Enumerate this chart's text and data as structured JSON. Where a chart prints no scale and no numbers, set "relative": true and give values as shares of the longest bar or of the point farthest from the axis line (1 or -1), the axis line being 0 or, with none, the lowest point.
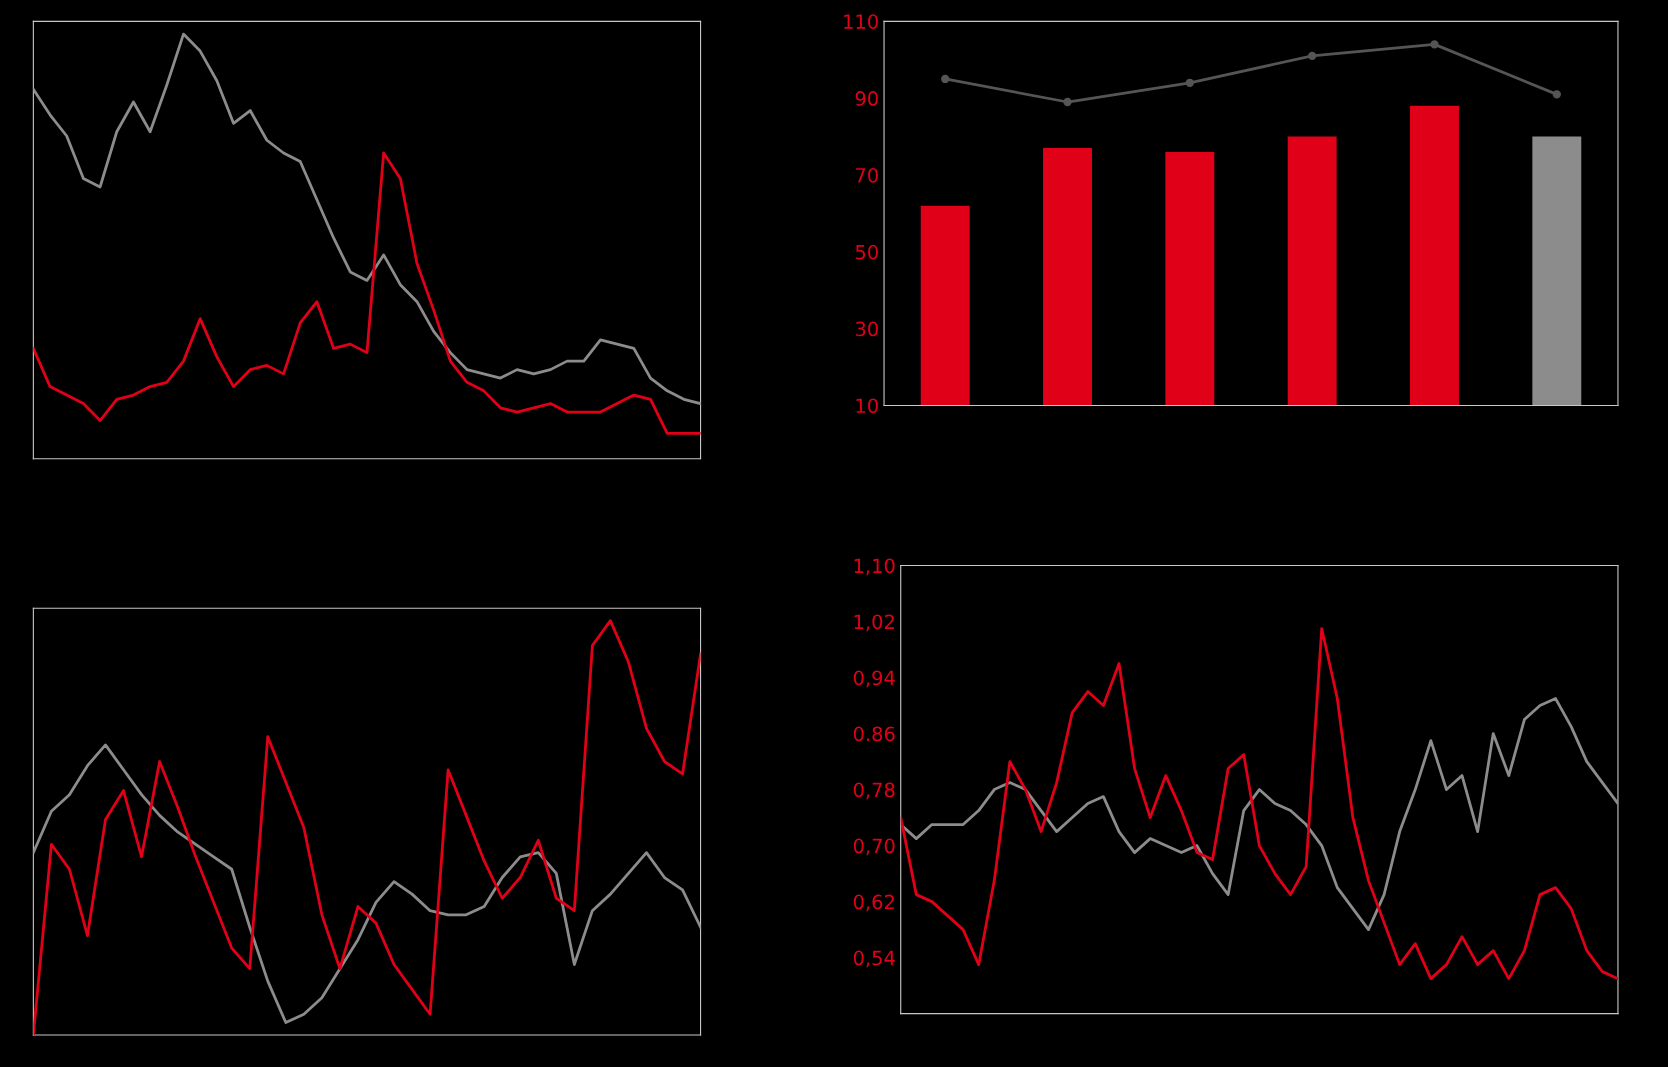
{
  "chart_data": [
    {
      "type": "line",
      "relative": true,
      "tick_labels": false,
      "categories": [
        null,
        null,
        null,
        null,
        null,
        null,
        null,
        null,
        null,
        null,
        null,
        null,
        null,
        null,
        null,
        null,
        null,
        null,
        null,
        null,
        null,
        null,
        null,
        null,
        null,
        null,
        null,
        null,
        null,
        null,
        null,
        null,
        null,
        null,
        null,
        null,
        null,
        null,
        null,
        null,
        null
      ],
      "series": [
        {
          "color": "#8c8c8c",
          "values": [
            0.87,
            0.81,
            0.76,
            0.66,
            0.64,
            0.77,
            0.84,
            0.77,
            0.88,
            1.0,
            0.96,
            0.89,
            0.79,
            0.82,
            0.75,
            0.72,
            0.7,
            0.61,
            0.52,
            0.44,
            0.42,
            0.48,
            0.41,
            0.37,
            0.3,
            0.25,
            0.21,
            0.2,
            0.19,
            0.21,
            0.2,
            0.21,
            0.23,
            0.23,
            0.28,
            0.27,
            0.26,
            0.19,
            0.16,
            0.14,
            0.13
          ]
        },
        {
          "color": "#e00018",
          "values": [
            0.26,
            0.17,
            0.15,
            0.13,
            0.09,
            0.14,
            0.15,
            0.17,
            0.18,
            0.23,
            0.33,
            0.24,
            0.17,
            0.21,
            0.22,
            0.2,
            0.32,
            0.37,
            0.26,
            0.27,
            0.25,
            0.72,
            0.66,
            0.46,
            0.35,
            0.23,
            0.18,
            0.16,
            0.12,
            0.11,
            0.12,
            0.13,
            0.11,
            0.11,
            0.11,
            0.13,
            0.15,
            0.14,
            0.06,
            0.06,
            0.06
          ]
        }
      ]
    },
    {
      "type": "bar",
      "tick_labels": "y",
      "categories": [
        null,
        null,
        null,
        null,
        null,
        null
      ],
      "ylim": [
        10,
        110
      ],
      "yticks": [
        10,
        30,
        50,
        70,
        90,
        110
      ],
      "colors": [
        "#e00018",
        "#e00018",
        "#e00018",
        "#e00018",
        "#e00018",
        "#8c8c8c"
      ],
      "values": [
        62,
        77,
        76,
        80,
        88,
        80
      ],
      "series": [
        {
          "type": "line",
          "color": "#555555",
          "marker": "circle",
          "values": [
            95,
            89,
            94,
            101,
            104,
            91
          ]
        }
      ]
    },
    {
      "type": "line",
      "relative": true,
      "tick_labels": false,
      "categories": [
        null,
        null,
        null,
        null,
        null,
        null,
        null,
        null,
        null,
        null,
        null,
        null,
        null,
        null,
        null,
        null,
        null,
        null,
        null,
        null,
        null,
        null,
        null,
        null,
        null,
        null,
        null,
        null,
        null,
        null,
        null,
        null,
        null,
        null,
        null,
        null,
        null,
        null
      ],
      "series": [
        {
          "color": "#8c8c8c",
          "values": [
            0.44,
            0.54,
            0.58,
            0.65,
            0.7,
            0.64,
            0.58,
            0.53,
            0.49,
            0.46,
            0.43,
            0.4,
            0.26,
            0.13,
            0.03,
            0.05,
            0.09,
            0.16,
            0.23,
            0.32,
            0.37,
            0.34,
            0.3,
            0.29,
            0.29,
            0.31,
            0.38,
            0.43,
            0.44,
            0.39,
            0.17,
            0.3,
            0.34,
            0.39,
            0.44,
            0.38,
            0.35,
            0.26
          ]
        },
        {
          "color": "#e00018",
          "values": [
            0.0,
            0.46,
            0.4,
            0.24,
            0.52,
            0.59,
            0.43,
            0.66,
            0.55,
            0.43,
            0.32,
            0.21,
            0.16,
            0.72,
            0.61,
            0.5,
            0.29,
            0.16,
            0.31,
            0.27,
            0.17,
            0.11,
            0.05,
            0.64,
            0.53,
            0.42,
            0.33,
            0.38,
            0.47,
            0.33,
            0.3,
            0.94,
            1.0,
            0.9,
            0.74,
            0.66,
            0.63,
            0.92
          ]
        }
      ]
    },
    {
      "type": "line",
      "tick_labels": "y",
      "ylim": [
        0.46,
        1.1
      ],
      "yticks": [
        {
          "value": 0.54,
          "label": "0,54"
        },
        {
          "value": 0.62,
          "label": "0,62"
        },
        {
          "value": 0.7,
          "label": "0,70"
        },
        {
          "value": 0.78,
          "label": "0,78"
        },
        {
          "value": 0.86,
          "label": "0.86"
        },
        {
          "value": 0.94,
          "label": "0,94"
        },
        {
          "value": 1.02,
          "label": "1,02"
        },
        {
          "value": 1.1,
          "label": "1,10"
        }
      ],
      "categories": [
        null,
        null,
        null,
        null,
        null,
        null,
        null,
        null,
        null,
        null,
        null,
        null,
        null,
        null,
        null,
        null,
        null,
        null,
        null,
        null,
        null,
        null,
        null,
        null,
        null,
        null,
        null,
        null,
        null,
        null,
        null,
        null,
        null,
        null,
        null,
        null,
        null,
        null,
        null,
        null,
        null,
        null,
        null,
        null,
        null,
        null,
        null
      ],
      "series": [
        {
          "color": "#8c8c8c",
          "values": [
            0.73,
            0.71,
            0.73,
            0.73,
            0.73,
            0.75,
            0.78,
            0.79,
            0.78,
            0.75,
            0.72,
            0.74,
            0.76,
            0.77,
            0.72,
            0.69,
            0.71,
            0.7,
            0.69,
            0.7,
            0.66,
            0.63,
            0.75,
            0.78,
            0.76,
            0.75,
            0.73,
            0.7,
            0.64,
            0.61,
            0.58,
            0.63,
            0.72,
            0.78,
            0.85,
            0.78,
            0.8,
            0.72,
            0.86,
            0.8,
            0.88,
            0.9,
            0.91,
            0.87,
            0.82,
            0.79,
            0.76
          ]
        },
        {
          "color": "#e00018",
          "values": [
            0.74,
            0.63,
            0.62,
            0.6,
            0.58,
            0.53,
            0.65,
            0.82,
            0.78,
            0.72,
            0.79,
            0.89,
            0.92,
            0.9,
            0.96,
            0.81,
            0.74,
            0.8,
            0.75,
            0.69,
            0.68,
            0.81,
            0.83,
            0.7,
            0.66,
            0.63,
            0.67,
            1.01,
            0.91,
            0.74,
            0.65,
            0.59,
            0.53,
            0.56,
            0.51,
            0.53,
            0.57,
            0.53,
            0.55,
            0.51,
            0.55,
            0.63,
            0.64,
            0.61,
            0.55,
            0.52,
            0.51
          ]
        }
      ]
    }
  ]
}
